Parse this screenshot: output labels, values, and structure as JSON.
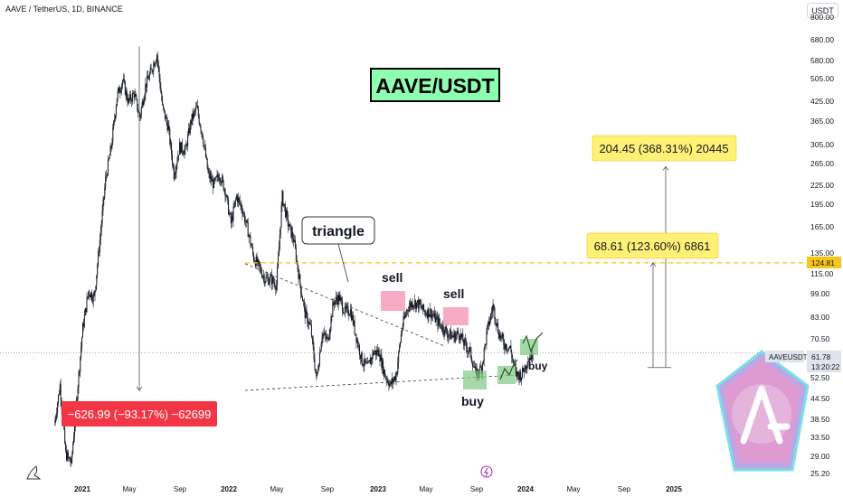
{
  "header": {
    "symbol": "AAVE / TetherUS, 1D, BINANCE",
    "currency": "USDT"
  },
  "title_badge": "AAVE/USDT",
  "annotations": {
    "triangle": "triangle",
    "sell": "sell",
    "buy": "buy",
    "drop_label": "−626.99 (−93.17%) −62699",
    "target1_label": "68.61 (123.60%) 6861",
    "target2_label": "204.45 (368.31%) 20445"
  },
  "price_axis": {
    "ticks": [
      "800.00",
      "680.00",
      "580.00",
      "505.00",
      "425.00",
      "365.00",
      "305.00",
      "265.00",
      "225.00",
      "195.00",
      "165.00",
      "135.00",
      "115.00",
      "99.00",
      "83.00",
      "70.50",
      "61.78",
      "52.50",
      "44.50",
      "38.50",
      "33.50",
      "29.00",
      "25.20"
    ],
    "resistance_level": "124.81",
    "current_symbol": "AAVEUSDT",
    "current_price": "61.78",
    "countdown": "13:20:22"
  },
  "colors": {
    "up": "#26a69a",
    "down": "#ef5350",
    "candle": "#131722",
    "resistance": "#f5c518",
    "drop_box": "#f23645",
    "target_box": "#fff176",
    "title_badge_bg": "#8effb0"
  },
  "chart_data": {
    "type": "candlestick",
    "x_ticks": [
      "2021",
      "May",
      "Sep",
      "2022",
      "May",
      "Sep",
      "2023",
      "May",
      "Sep",
      "2024",
      "May",
      "Sep",
      "2025"
    ],
    "price_scale": "log",
    "ylim": [
      23.5,
      860
    ],
    "series": [
      {
        "price_path": [
          [
            0,
            35
          ],
          [
            2,
            48
          ],
          [
            4,
            28
          ],
          [
            6,
            26
          ],
          [
            8,
            45
          ],
          [
            10,
            75
          ],
          [
            12,
            100
          ],
          [
            14,
            95
          ],
          [
            16,
            150
          ],
          [
            18,
            240
          ],
          [
            20,
            310
          ],
          [
            22,
            460
          ],
          [
            24,
            520
          ],
          [
            26,
            440
          ],
          [
            28,
            470
          ],
          [
            30,
            390
          ],
          [
            32,
            500
          ],
          [
            34,
            560
          ],
          [
            36,
            640
          ],
          [
            38,
            420
          ],
          [
            40,
            360
          ],
          [
            42,
            250
          ],
          [
            44,
            310
          ],
          [
            46,
            300
          ],
          [
            48,
            380
          ],
          [
            50,
            420
          ],
          [
            52,
            340
          ],
          [
            54,
            250
          ],
          [
            56,
            230
          ],
          [
            58,
            250
          ],
          [
            60,
            220
          ],
          [
            62,
            170
          ],
          [
            64,
            210
          ],
          [
            66,
            190
          ],
          [
            68,
            160
          ],
          [
            70,
            130
          ],
          [
            72,
            120
          ],
          [
            74,
            110
          ],
          [
            76,
            110
          ],
          [
            78,
            105
          ],
          [
            80,
            210
          ],
          [
            82,
            170
          ],
          [
            84,
            150
          ],
          [
            86,
            110
          ],
          [
            88,
            84
          ],
          [
            90,
            75
          ],
          [
            92,
            50
          ],
          [
            94,
            72
          ],
          [
            96,
            68
          ],
          [
            98,
            92
          ],
          [
            100,
            95
          ],
          [
            102,
            85
          ],
          [
            104,
            86
          ],
          [
            106,
            70
          ],
          [
            108,
            58
          ],
          [
            110,
            55
          ],
          [
            112,
            62
          ],
          [
            114,
            62
          ],
          [
            116,
            52
          ],
          [
            118,
            48
          ],
          [
            120,
            52
          ],
          [
            122,
            75
          ],
          [
            124,
            88
          ],
          [
            126,
            92
          ],
          [
            128,
            90
          ],
          [
            130,
            85
          ],
          [
            132,
            85
          ],
          [
            134,
            80
          ],
          [
            136,
            76
          ],
          [
            138,
            72
          ],
          [
            140,
            70
          ],
          [
            142,
            72
          ],
          [
            144,
            66
          ],
          [
            146,
            62
          ],
          [
            148,
            52
          ],
          [
            150,
            55
          ],
          [
            152,
            74
          ],
          [
            154,
            89
          ],
          [
            156,
            72
          ],
          [
            158,
            66
          ],
          [
            160,
            64
          ],
          [
            162,
            52
          ],
          [
            164,
            52
          ],
          [
            166,
            58
          ],
          [
            168,
            62
          ]
        ],
        "x_unit": "week index from 2020-12-07"
      }
    ],
    "overlays": {
      "resistance": 124.81,
      "triangle_upper": [
        [
          67,
          124
        ],
        [
          137,
          65
        ]
      ],
      "triangle_lower": [
        [
          67,
          46
        ],
        [
          164,
          52
        ]
      ],
      "drop_measure": {
        "from": 680,
        "to": 46
      },
      "target_measures": [
        {
          "from": 55,
          "to": 124.81
        },
        {
          "from": 55,
          "to": 265
        }
      ]
    }
  }
}
